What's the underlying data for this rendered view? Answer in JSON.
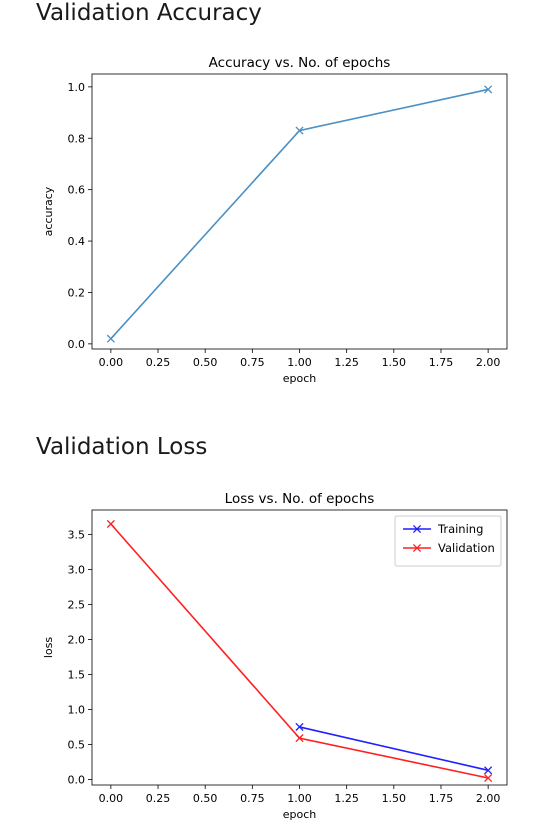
{
  "headings": {
    "accuracy": "Validation Accuracy",
    "loss": "Validation Loss"
  },
  "chart_data": [
    {
      "type": "line",
      "title": "Accuracy vs. No. of epochs",
      "xlabel": "epoch",
      "ylabel": "accuracy",
      "xlim": [
        -0.1,
        2.1
      ],
      "ylim": [
        -0.02,
        1.05
      ],
      "xticks": [
        "0.00",
        "0.25",
        "0.50",
        "0.75",
        "1.00",
        "1.25",
        "1.50",
        "1.75",
        "2.00"
      ],
      "yticks": [
        "0.0",
        "0.2",
        "0.4",
        "0.6",
        "0.8",
        "1.0"
      ],
      "grid": false,
      "series": [
        {
          "x": [
            0,
            1,
            2
          ],
          "values": [
            0.02,
            0.83,
            0.99
          ],
          "color": "#4a90c4",
          "marker": "x"
        }
      ]
    },
    {
      "type": "line",
      "title": "Loss vs. No. of epochs",
      "xlabel": "epoch",
      "ylabel": "loss",
      "xlim": [
        -0.1,
        2.1
      ],
      "ylim": [
        -0.08,
        3.85
      ],
      "xticks": [
        "0.00",
        "0.25",
        "0.50",
        "0.75",
        "1.00",
        "1.25",
        "1.50",
        "1.75",
        "2.00"
      ],
      "yticks": [
        "0.0",
        "0.5",
        "1.0",
        "1.5",
        "2.0",
        "2.5",
        "3.0",
        "3.5"
      ],
      "grid": false,
      "legend": "top-right",
      "series": [
        {
          "name": "Training",
          "x": [
            1,
            2
          ],
          "values": [
            0.75,
            0.13
          ],
          "color": "#1f1fff",
          "marker": "x"
        },
        {
          "name": "Validation",
          "x": [
            0,
            1,
            2
          ],
          "values": [
            3.65,
            0.59,
            0.02
          ],
          "color": "#ff2020",
          "marker": "x"
        }
      ]
    }
  ]
}
